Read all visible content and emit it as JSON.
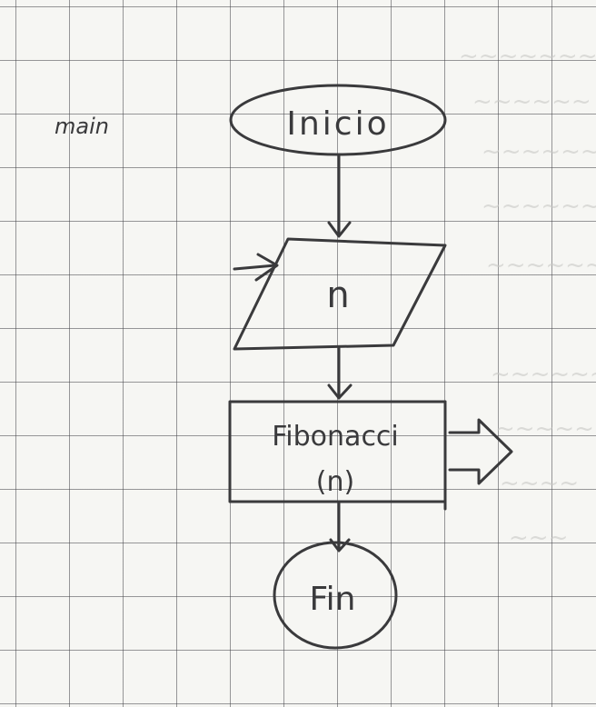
{
  "diagram": {
    "side_label": "main",
    "nodes": {
      "start": "Inicio",
      "input": "n",
      "process_line1": "Fibonacci",
      "process_line2": "(n)",
      "end": "Fin"
    }
  },
  "colors": {
    "paper": "#f6f6f3",
    "grid": "#46464b",
    "pencil": "#3a3a3c"
  }
}
